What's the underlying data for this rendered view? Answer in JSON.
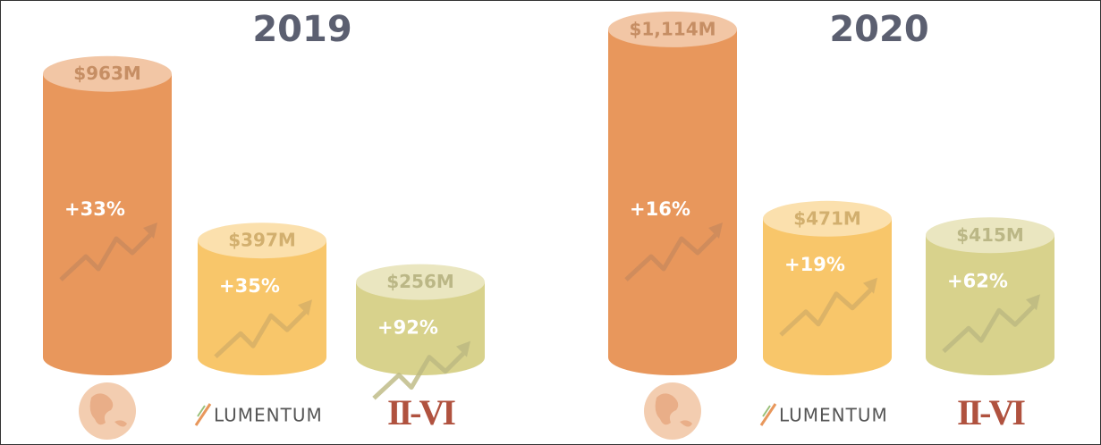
{
  "chart_data": [
    {
      "type": "cylinder",
      "title": "2019",
      "categories": [
        null,
        "LUMENTUM",
        "II-VI"
      ],
      "values": [
        963,
        397,
        256
      ],
      "value_labels": [
        "$963M",
        "$397M",
        "$256M"
      ],
      "annotations": [
        "+33%",
        "+35%",
        "+92%"
      ],
      "colors": [
        "#e8975c",
        "#f8c66a",
        "#d8d28c"
      ]
    },
    {
      "type": "cylinder",
      "title": "2020",
      "categories": [
        null,
        "LUMENTUM",
        "II-VI"
      ],
      "values": [
        1114,
        471,
        415
      ],
      "value_labels": [
        "$1,114M",
        "$471M",
        "$415M"
      ],
      "annotations": [
        "+16%",
        "+19%",
        "+62%"
      ],
      "colors": [
        "#e8975c",
        "#f8c66a",
        "#d8d28c"
      ]
    }
  ]
}
